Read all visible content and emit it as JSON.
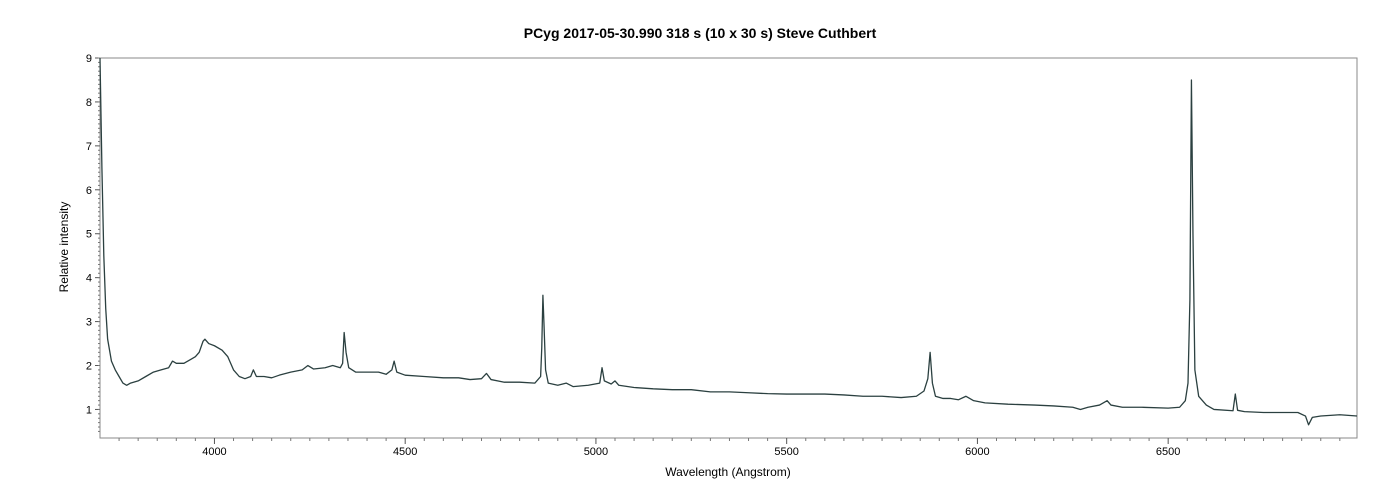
{
  "chart_data": {
    "type": "line",
    "title": "PCyg   2017-05-30.990  318 s (10 x 30 s)   Steve Cuthbert",
    "xlabel": "Wavelength (Angstrom)",
    "ylabel": "Relative intensity",
    "xlim": [
      3700,
      6995
    ],
    "ylim": [
      0.35,
      9
    ],
    "xticks": [
      4000,
      4500,
      5000,
      5500,
      6000,
      6500
    ],
    "yticks": [
      1,
      2,
      3,
      4,
      5,
      6,
      7,
      8,
      9
    ],
    "grid": false,
    "line_color": "#2b4040",
    "series": [
      {
        "points": [
          [
            3700,
            9.0
          ],
          [
            3705,
            6.5
          ],
          [
            3710,
            4.5
          ],
          [
            3715,
            3.3
          ],
          [
            3720,
            2.6
          ],
          [
            3730,
            2.1
          ],
          [
            3740,
            1.9
          ],
          [
            3750,
            1.75
          ],
          [
            3760,
            1.6
          ],
          [
            3770,
            1.55
          ],
          [
            3780,
            1.6
          ],
          [
            3800,
            1.65
          ],
          [
            3820,
            1.75
          ],
          [
            3840,
            1.85
          ],
          [
            3860,
            1.9
          ],
          [
            3880,
            1.95
          ],
          [
            3890,
            2.1
          ],
          [
            3900,
            2.05
          ],
          [
            3920,
            2.05
          ],
          [
            3940,
            2.15
          ],
          [
            3950,
            2.2
          ],
          [
            3960,
            2.3
          ],
          [
            3970,
            2.55
          ],
          [
            3975,
            2.6
          ],
          [
            3985,
            2.5
          ],
          [
            4000,
            2.45
          ],
          [
            4020,
            2.35
          ],
          [
            4035,
            2.2
          ],
          [
            4050,
            1.9
          ],
          [
            4065,
            1.75
          ],
          [
            4080,
            1.7
          ],
          [
            4095,
            1.75
          ],
          [
            4102,
            1.9
          ],
          [
            4110,
            1.75
          ],
          [
            4130,
            1.75
          ],
          [
            4150,
            1.72
          ],
          [
            4170,
            1.78
          ],
          [
            4200,
            1.85
          ],
          [
            4230,
            1.9
          ],
          [
            4245,
            2.0
          ],
          [
            4260,
            1.92
          ],
          [
            4290,
            1.95
          ],
          [
            4310,
            2.0
          ],
          [
            4330,
            1.95
          ],
          [
            4336,
            2.05
          ],
          [
            4340,
            2.75
          ],
          [
            4345,
            2.3
          ],
          [
            4352,
            1.95
          ],
          [
            4370,
            1.85
          ],
          [
            4400,
            1.85
          ],
          [
            4430,
            1.85
          ],
          [
            4450,
            1.8
          ],
          [
            4465,
            1.9
          ],
          [
            4471,
            2.1
          ],
          [
            4478,
            1.85
          ],
          [
            4500,
            1.78
          ],
          [
            4550,
            1.75
          ],
          [
            4600,
            1.72
          ],
          [
            4640,
            1.72
          ],
          [
            4670,
            1.68
          ],
          [
            4700,
            1.7
          ],
          [
            4713,
            1.82
          ],
          [
            4725,
            1.68
          ],
          [
            4760,
            1.62
          ],
          [
            4800,
            1.62
          ],
          [
            4840,
            1.6
          ],
          [
            4855,
            1.75
          ],
          [
            4858,
            2.4
          ],
          [
            4861,
            3.6
          ],
          [
            4864,
            2.9
          ],
          [
            4868,
            1.9
          ],
          [
            4875,
            1.6
          ],
          [
            4900,
            1.55
          ],
          [
            4922,
            1.6
          ],
          [
            4940,
            1.52
          ],
          [
            4980,
            1.55
          ],
          [
            5010,
            1.6
          ],
          [
            5016,
            1.95
          ],
          [
            5022,
            1.65
          ],
          [
            5040,
            1.58
          ],
          [
            5050,
            1.65
          ],
          [
            5060,
            1.55
          ],
          [
            5100,
            1.5
          ],
          [
            5150,
            1.47
          ],
          [
            5200,
            1.45
          ],
          [
            5250,
            1.45
          ],
          [
            5300,
            1.4
          ],
          [
            5350,
            1.4
          ],
          [
            5400,
            1.38
          ],
          [
            5450,
            1.36
          ],
          [
            5500,
            1.35
          ],
          [
            5550,
            1.35
          ],
          [
            5600,
            1.35
          ],
          [
            5650,
            1.33
          ],
          [
            5700,
            1.3
          ],
          [
            5750,
            1.3
          ],
          [
            5800,
            1.27
          ],
          [
            5840,
            1.3
          ],
          [
            5860,
            1.42
          ],
          [
            5870,
            1.7
          ],
          [
            5876,
            2.3
          ],
          [
            5882,
            1.6
          ],
          [
            5890,
            1.3
          ],
          [
            5910,
            1.25
          ],
          [
            5930,
            1.25
          ],
          [
            5950,
            1.22
          ],
          [
            5970,
            1.3
          ],
          [
            5990,
            1.2
          ],
          [
            6020,
            1.15
          ],
          [
            6080,
            1.12
          ],
          [
            6150,
            1.1
          ],
          [
            6200,
            1.08
          ],
          [
            6250,
            1.05
          ],
          [
            6270,
            1.0
          ],
          [
            6290,
            1.05
          ],
          [
            6320,
            1.1
          ],
          [
            6340,
            1.2
          ],
          [
            6350,
            1.1
          ],
          [
            6380,
            1.05
          ],
          [
            6430,
            1.05
          ],
          [
            6500,
            1.03
          ],
          [
            6530,
            1.05
          ],
          [
            6545,
            1.2
          ],
          [
            6552,
            1.6
          ],
          [
            6557,
            3.5
          ],
          [
            6561,
            8.5
          ],
          [
            6565,
            5.0
          ],
          [
            6570,
            1.9
          ],
          [
            6580,
            1.3
          ],
          [
            6600,
            1.1
          ],
          [
            6620,
            1.0
          ],
          [
            6670,
            0.97
          ],
          [
            6676,
            1.35
          ],
          [
            6682,
            0.98
          ],
          [
            6700,
            0.95
          ],
          [
            6750,
            0.93
          ],
          [
            6800,
            0.93
          ],
          [
            6840,
            0.93
          ],
          [
            6860,
            0.85
          ],
          [
            6868,
            0.65
          ],
          [
            6878,
            0.82
          ],
          [
            6900,
            0.85
          ],
          [
            6950,
            0.88
          ],
          [
            6995,
            0.85
          ]
        ]
      }
    ]
  }
}
